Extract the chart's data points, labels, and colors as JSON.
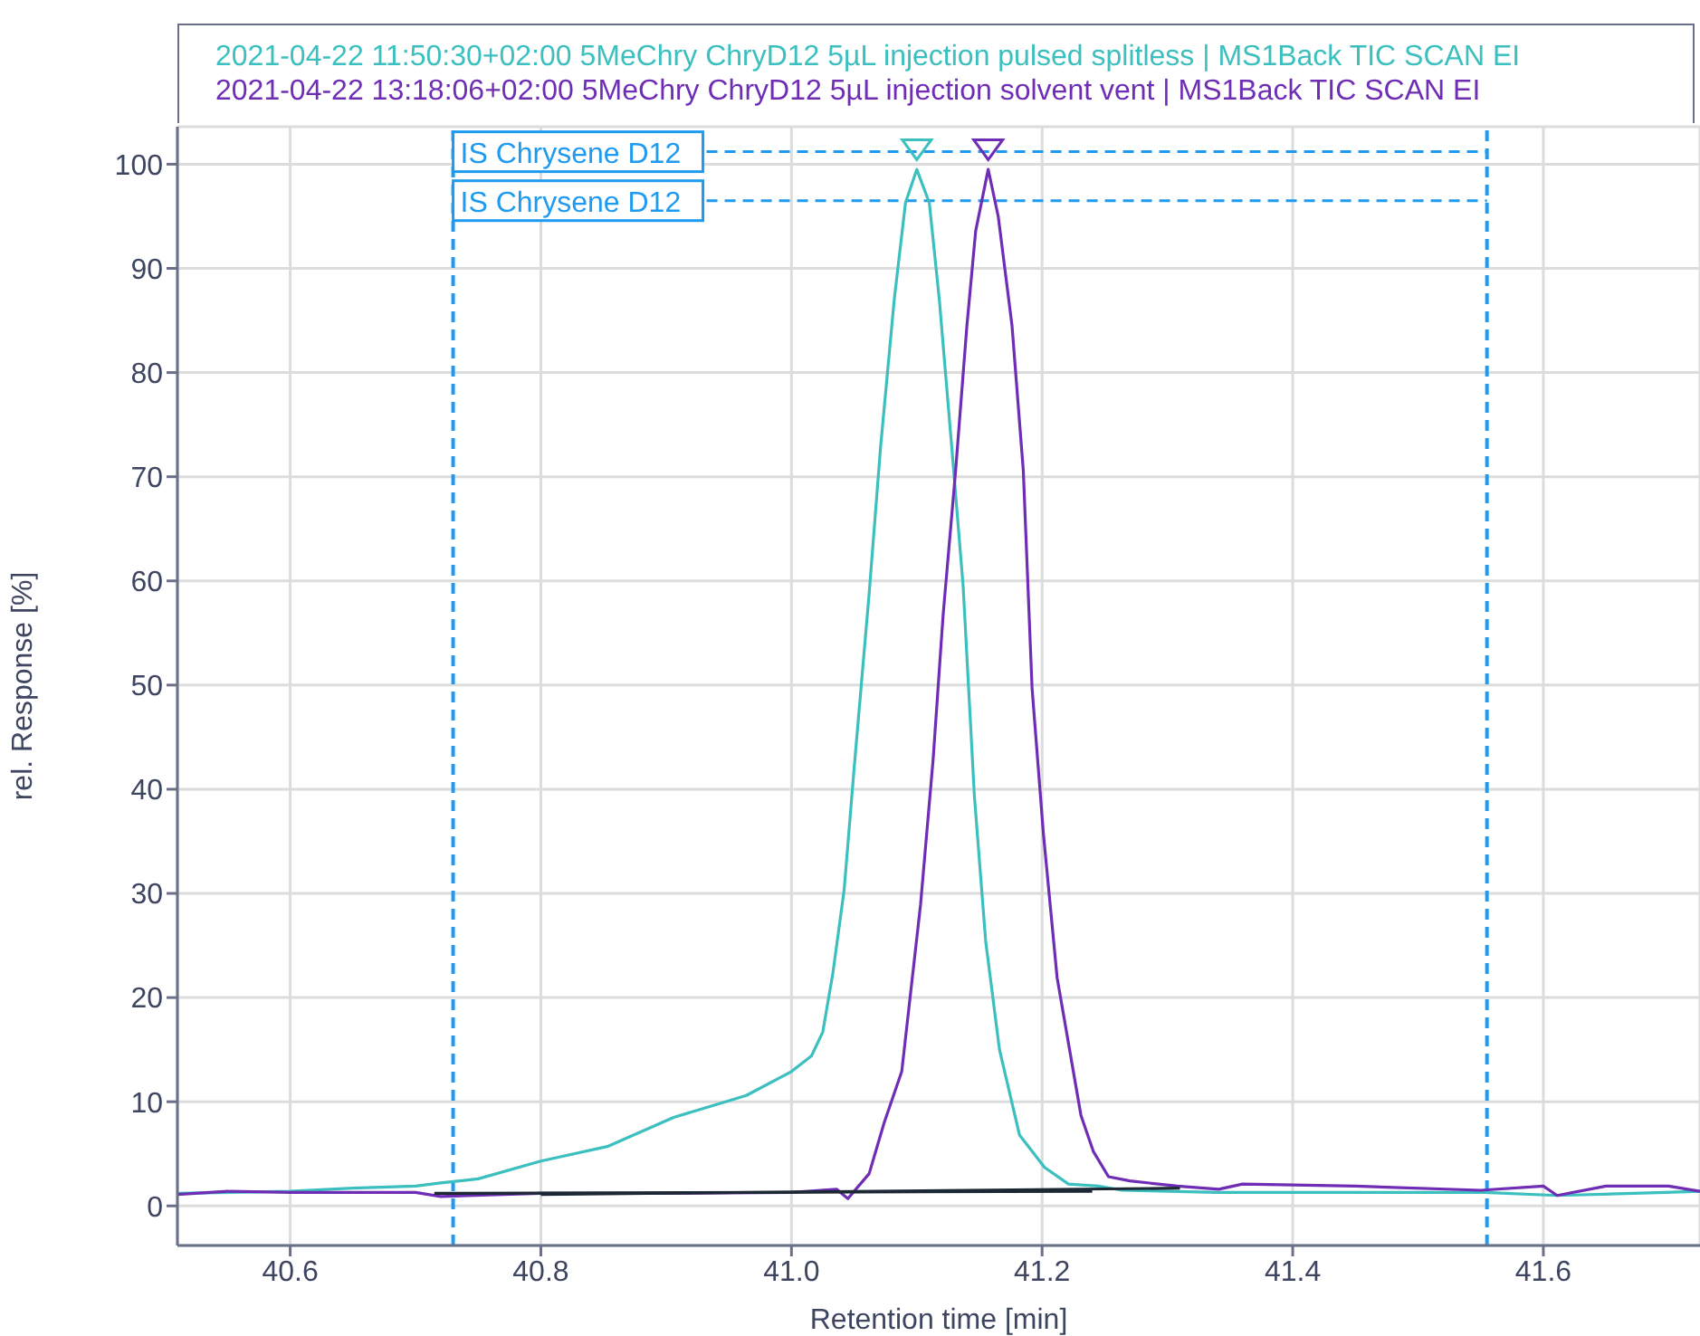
{
  "chart_data": {
    "type": "line",
    "xlabel": "Retention time [min]",
    "ylabel": "rel. Response [%]",
    "xlim": [
      40.51,
      41.725
    ],
    "xticks": [
      40.6,
      40.8,
      {
        "value": 41,
        "label": "41.0"
      },
      41.2,
      41.4,
      41.6
    ],
    "ylim": [
      -3.8,
      103.6
    ],
    "yticks": [
      0,
      10,
      20,
      30,
      40,
      50,
      60,
      70,
      80,
      90,
      100
    ],
    "grid": true,
    "legend": "top",
    "marker": "none",
    "line_style": "solid",
    "series": [
      {
        "name": "2021-04-22 11:50:30+02:00 5MeChry ChryD12 5µL injection pulsed splitless | MS1Back TIC SCAN EI",
        "color": "#3bbfbf",
        "x": [
          40.51,
          40.6,
          40.65,
          40.7,
          40.72,
          40.75,
          40.8,
          40.853,
          40.906,
          40.964,
          41.0,
          41.016,
          41.025,
          41.033,
          41.042,
          41.05,
          41.062,
          41.071,
          41.082,
          41.091,
          41.1,
          41.11,
          41.118,
          41.128,
          41.137,
          41.146,
          41.155,
          41.166,
          41.182,
          41.202,
          41.221,
          41.245,
          41.264,
          41.34,
          41.427,
          41.553,
          41.611,
          41.697,
          41.725
        ],
        "values": [
          1.2,
          1.4,
          1.7,
          1.9,
          2.2,
          2.6,
          4.3,
          5.7,
          8.5,
          10.6,
          12.9,
          14.4,
          16.7,
          22.3,
          30.3,
          42,
          58.8,
          72.7,
          87,
          96.3,
          99.5,
          96.3,
          87,
          72.7,
          59.5,
          39.3,
          25.4,
          15,
          6.8,
          3.7,
          2.1,
          1.9,
          1.5,
          1.3,
          1.3,
          1.3,
          1.0,
          1.3,
          1.4
        ]
      },
      {
        "name": "2021-04-22 13:18:06+02:00 5MeChry ChryD12 5µL injection solvent vent | MS1Back TIC SCAN EI",
        "color": "#6f2db5",
        "x": [
          40.51,
          40.55,
          40.6,
          40.7,
          40.72,
          40.8,
          40.9,
          41.0,
          41.036,
          41.045,
          41.062,
          41.074,
          41.088,
          41.103,
          41.113,
          41.121,
          41.131,
          41.14,
          41.147,
          41.157,
          41.165,
          41.176,
          41.185,
          41.192,
          41.201,
          41.212,
          41.231,
          41.241,
          41.253,
          41.27,
          41.308,
          41.341,
          41.36,
          41.45,
          41.55,
          41.6,
          41.611,
          41.65,
          41.7,
          41.725
        ],
        "values": [
          1.1,
          1.4,
          1.3,
          1.3,
          0.9,
          1.2,
          1.2,
          1.3,
          1.6,
          0.7,
          3.1,
          8,
          12.9,
          28.9,
          42.8,
          56.7,
          70.6,
          84.5,
          93.6,
          99.5,
          95,
          84.5,
          70.6,
          49.7,
          35.8,
          21.9,
          8.7,
          5.2,
          2.8,
          2.4,
          1.9,
          1.6,
          2.1,
          1.9,
          1.5,
          1.9,
          1.0,
          1.9,
          1.9,
          1.4
        ]
      },
      {
        "type": "line",
        "color": "#1c2833",
        "x": [
          40.715,
          41.24
        ],
        "values": [
          1.2,
          1.4
        ]
      },
      {
        "type": "line",
        "color": "#1c2833",
        "x": [
          40.8,
          41.31
        ],
        "values": [
          1.1,
          1.7
        ]
      },
      {
        "type": "scatter",
        "marker": "triangle",
        "color": "#3bbfbf",
        "x": [
          41.1
        ],
        "values": [
          101.3
        ]
      },
      {
        "type": "scatter",
        "marker": "triangle",
        "color": "#6f2db5",
        "x": [
          41.157
        ],
        "values": [
          101.3
        ]
      }
    ],
    "ref_lines": [
      {
        "axis": "x",
        "value": 40.73,
        "color": "#1e9bf0",
        "line_style": "dashed"
      },
      {
        "axis": "x",
        "value": 41.555,
        "color": "#1e9bf0",
        "line_style": "dashed"
      }
    ],
    "annotations": [
      {
        "text": "IS Chrysene D12",
        "x": 40.73,
        "y": 101.2
      },
      {
        "text": "IS Chrysene D12",
        "x": 40.73,
        "y": 96.5
      }
    ]
  }
}
